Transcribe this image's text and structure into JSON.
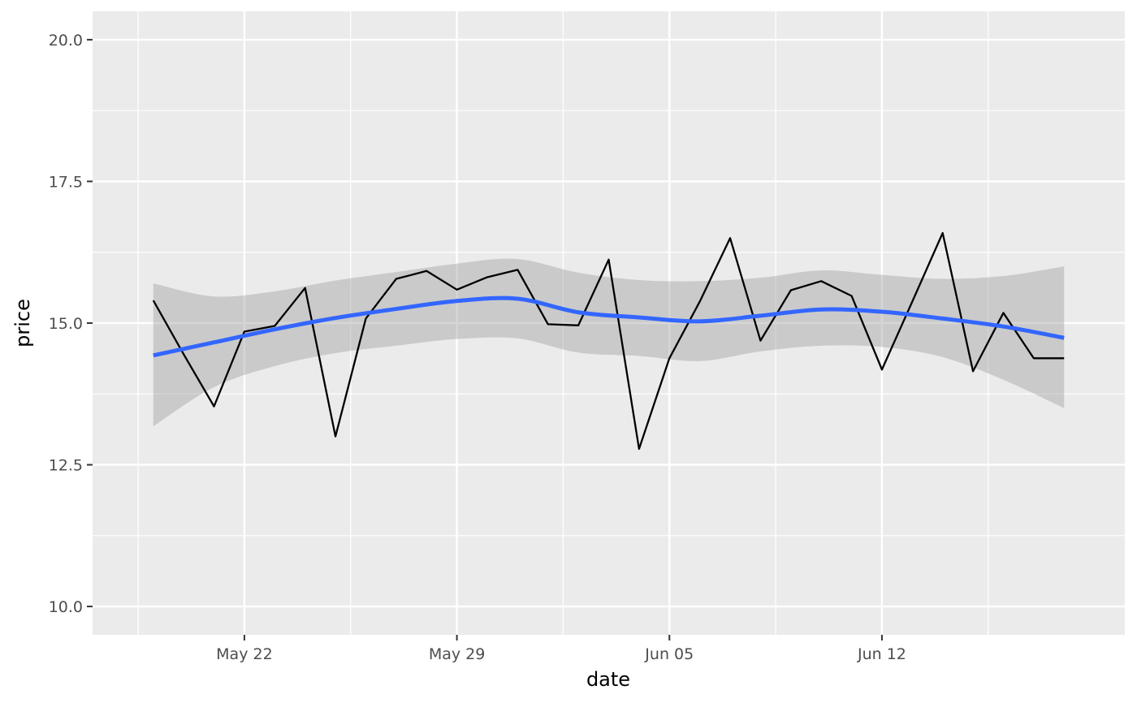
{
  "chart_data": {
    "type": "line",
    "xlabel": "date",
    "ylabel": "price",
    "x_range": [
      "2024-05-17",
      "2024-06-20"
    ],
    "ylim": [
      9.5,
      20.5
    ],
    "y_ticks": [
      10.0,
      12.5,
      15.0,
      17.5,
      20.0
    ],
    "y_tick_labels": [
      "10.0",
      "12.5",
      "15.0",
      "17.5",
      "20.0"
    ],
    "x_ticks": [
      "2024-05-22",
      "2024-05-29",
      "2024-06-05",
      "2024-06-12"
    ],
    "x_tick_labels": [
      "May 22",
      "May 29",
      "Jun 05",
      "Jun 12"
    ],
    "grid": true,
    "legend": "none",
    "colors": {
      "panel": "#ebebeb",
      "grid": "#ffffff",
      "line": "#000000",
      "smooth": "#3366ff",
      "ribbon": "#999999"
    },
    "series": [
      {
        "kind": "line",
        "x": [
          "2024-05-19",
          "2024-05-20",
          "2024-05-21",
          "2024-05-22",
          "2024-05-23",
          "2024-05-24",
          "2024-05-25",
          "2024-05-26",
          "2024-05-27",
          "2024-05-28",
          "2024-05-29",
          "2024-05-30",
          "2024-05-31",
          "2024-06-01",
          "2024-06-02",
          "2024-06-03",
          "2024-06-04",
          "2024-06-05",
          "2024-06-06",
          "2024-06-07",
          "2024-06-08",
          "2024-06-09",
          "2024-06-10",
          "2024-06-11",
          "2024-06-12",
          "2024-06-13",
          "2024-06-14",
          "2024-06-15",
          "2024-06-16",
          "2024-06-17",
          "2024-06-18"
        ],
        "values": [
          15.4,
          14.45,
          13.53,
          14.85,
          14.95,
          15.62,
          13.0,
          15.08,
          15.78,
          15.92,
          15.59,
          15.81,
          15.94,
          14.98,
          14.96,
          16.12,
          12.78,
          14.38,
          15.38,
          16.5,
          14.69,
          15.58,
          15.74,
          15.48,
          14.18,
          15.38,
          16.59,
          14.15,
          15.18,
          14.38,
          14.38
        ]
      },
      {
        "kind": "smooth",
        "x": [
          "2024-05-19",
          "2024-05-21",
          "2024-05-23",
          "2024-05-25",
          "2024-05-27",
          "2024-05-29",
          "2024-05-31",
          "2024-06-02",
          "2024-06-04",
          "2024-06-06",
          "2024-06-08",
          "2024-06-10",
          "2024-06-12",
          "2024-06-14",
          "2024-06-16",
          "2024-06-18"
        ],
        "values": [
          14.43,
          14.66,
          14.89,
          15.09,
          15.25,
          15.39,
          15.43,
          15.19,
          15.1,
          15.03,
          15.13,
          15.24,
          15.2,
          15.08,
          14.94,
          14.74
        ],
        "lower": [
          13.18,
          13.87,
          14.24,
          14.47,
          14.6,
          14.72,
          14.73,
          14.48,
          14.42,
          14.33,
          14.5,
          14.6,
          14.58,
          14.4,
          14.0,
          13.5
        ],
        "upper": [
          15.7,
          15.47,
          15.56,
          15.75,
          15.9,
          16.05,
          16.13,
          15.89,
          15.76,
          15.74,
          15.8,
          15.93,
          15.85,
          15.78,
          15.83,
          16.0
        ]
      }
    ]
  }
}
